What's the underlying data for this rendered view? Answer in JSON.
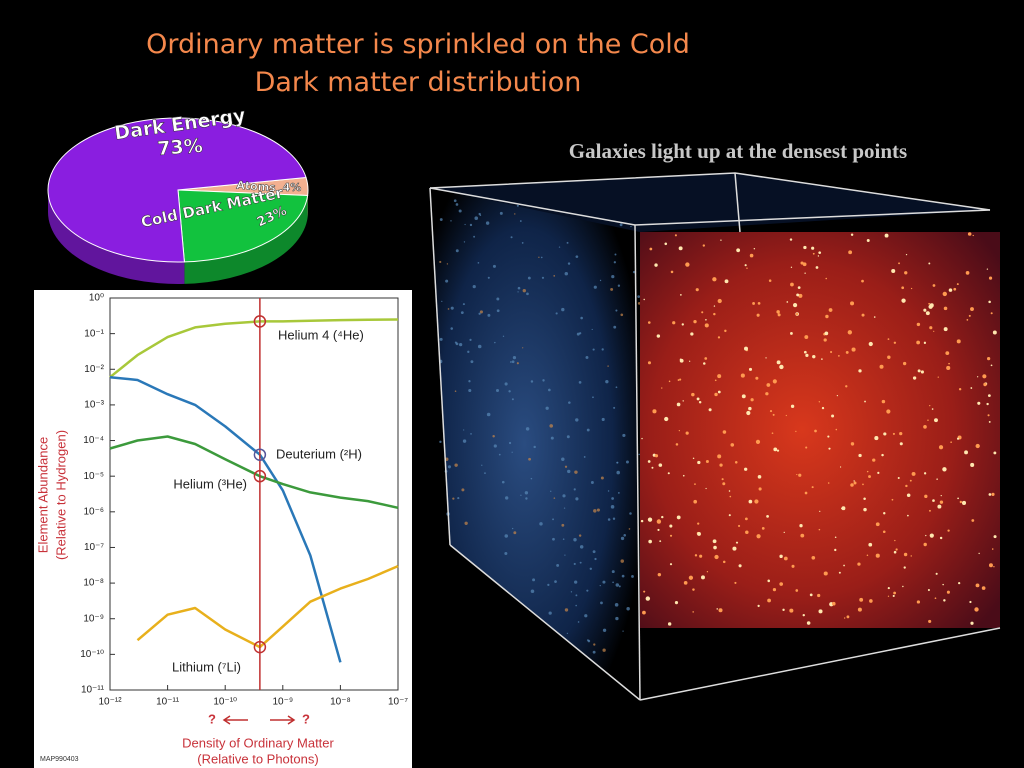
{
  "title": "Ordinary matter is sprinkled on the  Cold Dark matter distribution",
  "caption": "Galaxies light up  at the densest  points",
  "chart_data": [
    {
      "type": "pie",
      "categories": [
        "Dark Energy",
        "Cold Dark Matter",
        "Atoms"
      ],
      "values": [
        73,
        23,
        4
      ],
      "value_labels": [
        "73%",
        "23%",
        "4%"
      ],
      "colors": [
        "#8a1ee0",
        "#12c23e",
        "#f2b090"
      ]
    },
    {
      "type": "line",
      "x": [
        1e-12,
        3e-12,
        1e-11,
        3e-11,
        1e-10,
        4e-10,
        1e-09,
        3e-09,
        1e-08,
        3e-08,
        1e-07
      ],
      "series": [
        {
          "name": "Helium 4 (⁴He)",
          "color": "#a8c83a",
          "values": [
            0.006,
            0.025,
            0.08,
            0.15,
            0.19,
            0.22,
            0.22,
            0.23,
            0.24,
            0.245,
            0.25
          ]
        },
        {
          "name": "Deuterium (²H)",
          "color": "#2a78b8",
          "values": [
            0.006,
            0.005,
            0.002,
            0.001,
            0.00025,
            4e-05,
            4e-06,
            6e-08,
            6e-11,
            null,
            null
          ]
        },
        {
          "name": "Helium (³He)",
          "color": "#3c9a3c",
          "values": [
            6e-05,
            0.0001,
            0.00013,
            8e-05,
            3e-05,
            1e-05,
            6e-06,
            3.5e-06,
            2.5e-06,
            2e-06,
            1.3e-06
          ]
        },
        {
          "name": "Lithium (⁷Li)",
          "color": "#e8b01c",
          "values": [
            null,
            2.5e-10,
            1.3e-09,
            2e-09,
            5e-10,
            1.6e-10,
            6e-10,
            3e-09,
            7e-09,
            1.3e-08,
            3e-08
          ]
        }
      ],
      "measured_x": 4e-10,
      "xlog": true,
      "ylog": true,
      "xlim": [
        1e-12,
        1e-07
      ],
      "ylim": [
        1e-11,
        1
      ],
      "xticks": [
        {
          "value": 1e-12,
          "label": "10⁻¹²"
        },
        {
          "value": 1e-11,
          "label": "10⁻¹¹"
        },
        {
          "value": 1e-10,
          "label": "10⁻¹⁰"
        },
        {
          "value": 1e-09,
          "label": "10⁻⁹"
        },
        {
          "value": 1e-08,
          "label": "10⁻⁸"
        },
        {
          "value": 1e-07,
          "label": "10⁻⁷"
        }
      ],
      "yticks": [
        {
          "value": 1,
          "label": "10⁰"
        },
        {
          "value": 0.1,
          "label": "10⁻¹"
        },
        {
          "value": 0.01,
          "label": "10⁻²"
        },
        {
          "value": 0.001,
          "label": "10⁻³"
        },
        {
          "value": 0.0001,
          "label": "10⁻⁴"
        },
        {
          "value": 1e-05,
          "label": "10⁻⁵"
        },
        {
          "value": 1e-06,
          "label": "10⁻⁶"
        },
        {
          "value": 1e-07,
          "label": "10⁻⁷"
        },
        {
          "value": 1e-08,
          "label": "10⁻⁸"
        },
        {
          "value": 1e-09,
          "label": "10⁻⁹"
        },
        {
          "value": 1e-10,
          "label": "10⁻¹⁰"
        },
        {
          "value": 1e-11,
          "label": "10⁻¹¹"
        }
      ],
      "ylabel": [
        "Element Abundance",
        "(Relative to Hydrogen)"
      ],
      "xlabel": [
        "Density of Ordinary Matter",
        "(Relative to Photons)"
      ],
      "annotations": [
        "?",
        "?"
      ],
      "code": "MAP990403"
    }
  ]
}
